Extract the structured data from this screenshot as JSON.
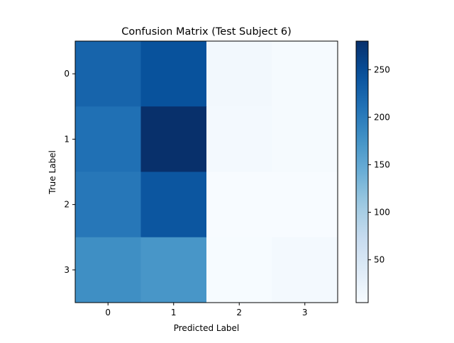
{
  "chart_data": {
    "type": "heatmap",
    "title": "Confusion Matrix (Test Subject 6)",
    "xlabel": "Predicted Label",
    "ylabel": "True Label",
    "x_categories": [
      "0",
      "1",
      "2",
      "3"
    ],
    "y_categories": [
      "0",
      "1",
      "2",
      "3"
    ],
    "values": [
      [
        225,
        245,
        12,
        8
      ],
      [
        212,
        280,
        10,
        8
      ],
      [
        205,
        240,
        5,
        5
      ],
      [
        180,
        172,
        6,
        10
      ]
    ],
    "colormap": "Blues",
    "colorbar": {
      "min": 5,
      "max": 280,
      "ticks": [
        50,
        100,
        150,
        200,
        250
      ]
    },
    "grid": false
  }
}
